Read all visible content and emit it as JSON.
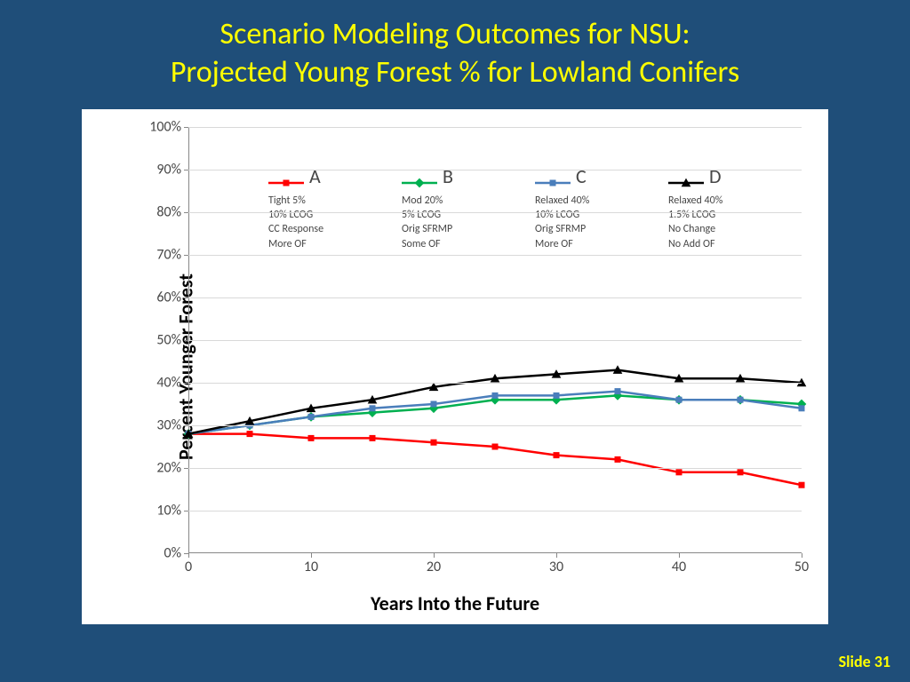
{
  "title_line1": "Scenario Modeling Outcomes for NSU:",
  "title_line2": "Projected Young Forest % for Lowland Conifers",
  "slide_number": "Slide 31",
  "chart": {
    "type": "line",
    "background_color": "#ffffff",
    "grid_color": "#d9d9d9",
    "axis_color": "#808080",
    "tick_fontsize": 16,
    "label_fontsize": 22,
    "x_label": "Years Into the Future",
    "y_label": "Percent Younger Forest",
    "xlim": [
      0,
      50
    ],
    "ylim": [
      0,
      100
    ],
    "x_ticks": [
      0,
      10,
      20,
      30,
      40,
      50
    ],
    "y_ticks": [
      0,
      10,
      20,
      30,
      40,
      50,
      60,
      70,
      80,
      90,
      100
    ],
    "y_tick_labels": [
      "0%",
      "10%",
      "20%",
      "30%",
      "40%",
      "50%",
      "60%",
      "70%",
      "80%",
      "90%",
      "100%"
    ],
    "x_values": [
      0,
      5,
      10,
      15,
      20,
      25,
      30,
      35,
      40,
      45,
      50
    ],
    "series": [
      {
        "name": "A",
        "color": "#ff0000",
        "marker": "square",
        "marker_size": 7,
        "line_width": 2.5,
        "y": [
          28,
          28,
          27,
          27,
          26,
          25,
          23,
          22,
          19,
          19,
          16
        ],
        "desc": [
          "Tight 5%",
          "10% LCOG",
          "CC Response",
          "More OF"
        ]
      },
      {
        "name": "B",
        "color": "#00b050",
        "marker": "diamond",
        "marker_size": 7,
        "line_width": 2.5,
        "y": [
          28,
          30,
          32,
          33,
          34,
          36,
          36,
          37,
          36,
          36,
          35
        ],
        "desc": [
          "Mod 20%",
          "5% LCOG",
          "Orig SFRMP",
          "Some OF"
        ]
      },
      {
        "name": "C",
        "color": "#4a7ebb",
        "marker": "square",
        "marker_size": 7,
        "line_width": 2.5,
        "y": [
          28,
          30,
          32,
          34,
          35,
          37,
          37,
          38,
          36,
          36,
          34
        ],
        "desc": [
          "Relaxed 40%",
          "10% LCOG",
          "Orig SFRMP",
          "More OF"
        ]
      },
      {
        "name": "D",
        "color": "#000000",
        "marker": "triangle",
        "marker_size": 8,
        "line_width": 2.5,
        "y": [
          28,
          31,
          34,
          36,
          39,
          41,
          42,
          43,
          41,
          41,
          40
        ],
        "desc": [
          "Relaxed 40%",
          "1.5% LCOG",
          "No Change",
          "No Add OF"
        ]
      }
    ]
  }
}
